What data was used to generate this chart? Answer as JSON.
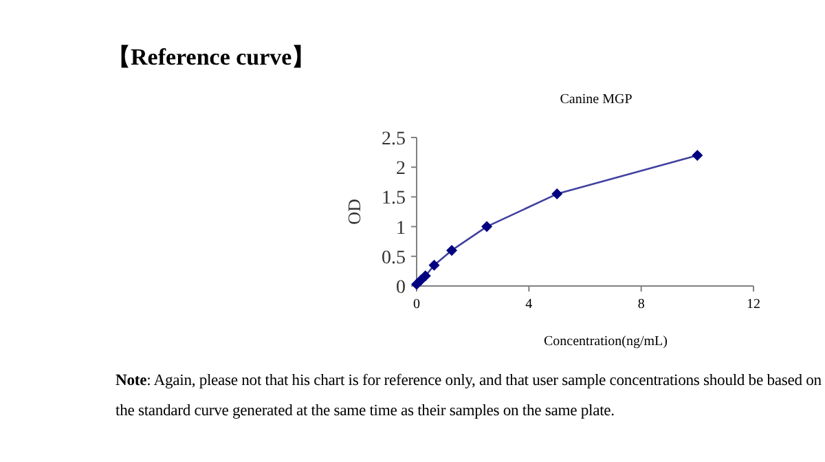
{
  "chart_data": {
    "type": "line",
    "title": "【Reference curve】",
    "subtitle": "Canine MGP",
    "xlabel": "Concentration(ng/mL)",
    "ylabel": "OD",
    "x": [
      0,
      0.156,
      0.3125,
      0.625,
      1.25,
      2.5,
      5,
      10
    ],
    "values": [
      0.03,
      0.1,
      0.17,
      0.35,
      0.6,
      1.0,
      1.55,
      2.2
    ],
    "color": "#000080",
    "marker": "diamond",
    "line_style": "solid",
    "xlim": [
      0,
      12
    ],
    "xticks": [
      0,
      4,
      8,
      12
    ],
    "ylim": [
      0,
      2.5
    ],
    "yticks": [
      0,
      0.5,
      1,
      1.5,
      2,
      2.5
    ],
    "grid": false,
    "annotations": [
      "**Note**: Again, please not that his chart is for reference only, and that user sample concentrations should be based on the standard curve generated at the same time as their samples on the same plate."
    ]
  }
}
